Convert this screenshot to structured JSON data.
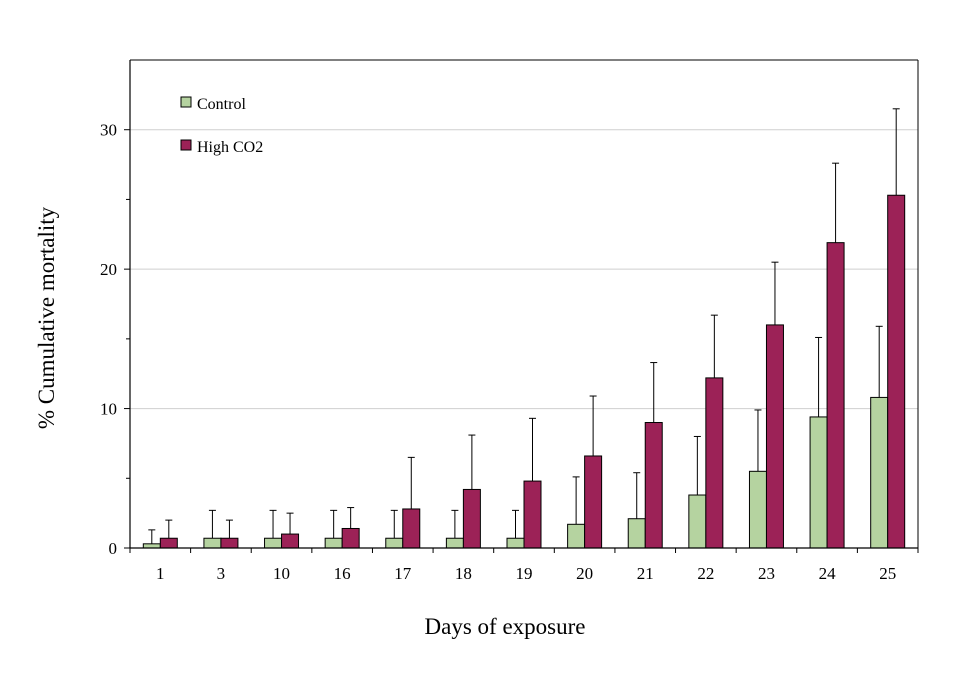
{
  "chart_data": {
    "type": "bar",
    "xlabel": "Days of exposure",
    "ylabel": "% Cumulative mortality",
    "categories": [
      "1",
      "3",
      "10",
      "16",
      "17",
      "18",
      "19",
      "20",
      "21",
      "22",
      "23",
      "24",
      "25"
    ],
    "ylim": [
      0,
      35
    ],
    "yticks": [
      0,
      10,
      20,
      30
    ],
    "grid": true,
    "legend_position": "top-left",
    "series": [
      {
        "name": "Control",
        "color": "#b5d3a0",
        "values": [
          0.3,
          0.7,
          0.7,
          0.7,
          0.7,
          0.7,
          0.7,
          1.7,
          2.1,
          3.8,
          5.5,
          9.4,
          10.8
        ],
        "error": [
          1.0,
          2.0,
          2.0,
          2.0,
          2.0,
          2.0,
          2.0,
          3.4,
          3.3,
          4.2,
          4.4,
          5.7,
          5.1
        ]
      },
      {
        "name": "High CO2",
        "color": "#9c2257",
        "values": [
          0.7,
          0.7,
          1.0,
          1.4,
          2.8,
          4.2,
          4.8,
          6.6,
          9.0,
          12.2,
          16.0,
          21.9,
          25.3
        ],
        "error": [
          1.3,
          1.3,
          1.5,
          1.5,
          3.7,
          3.9,
          4.5,
          4.3,
          4.3,
          4.5,
          4.5,
          5.7,
          6.2
        ]
      }
    ]
  }
}
